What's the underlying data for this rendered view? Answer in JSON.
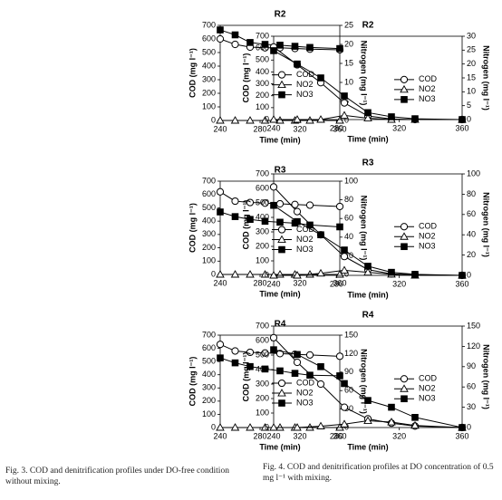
{
  "chart_data": [
    {
      "type": "line",
      "title": "R2",
      "x_label": "Time (min)",
      "y_label": "COD (mg l⁻¹)",
      "y2_label": "Nitrogen (mg l⁻¹)",
      "x": [
        240,
        255,
        270,
        285,
        300,
        315,
        330,
        360
      ],
      "xlim": [
        240,
        360
      ],
      "xticks": [
        240,
        280,
        320,
        360
      ],
      "ylim": [
        0,
        700
      ],
      "yticks": [
        0,
        100,
        200,
        300,
        400,
        500,
        600,
        700
      ],
      "y2lim": [
        0,
        25
      ],
      "y2ticks": [
        0,
        5,
        10,
        15,
        20,
        25
      ],
      "series": [
        {
          "name": "COD",
          "color": "#000000",
          "marker": "circle",
          "values": [
            600,
            560,
            540,
            535,
            535,
            530,
            525,
            520
          ]
        },
        {
          "name": "NO2",
          "color": "#000000",
          "marker": "triangle",
          "axis": "y2",
          "values": [
            0,
            0,
            0,
            0,
            0,
            0,
            0,
            0
          ]
        },
        {
          "name": "NO3",
          "color": "#000000",
          "marker": "square",
          "axis": "y2",
          "values": [
            23.8,
            22.5,
            20.5,
            20,
            19.8,
            19.5,
            19.2,
            18.9
          ]
        }
      ]
    },
    {
      "type": "line",
      "title": "R3",
      "x_label": "Time (min)",
      "y_label": "COD (mg l⁻¹)",
      "y2_label": "Nitrogen (mg l⁻¹)",
      "x": [
        240,
        255,
        270,
        285,
        300,
        315,
        330,
        360
      ],
      "xlim": [
        240,
        360
      ],
      "xticks": [
        240,
        280,
        320,
        360
      ],
      "ylim": [
        0,
        700
      ],
      "yticks": [
        0,
        100,
        200,
        300,
        400,
        500,
        600,
        700
      ],
      "y2lim": [
        0,
        100
      ],
      "y2ticks": [
        0,
        20,
        40,
        60,
        80,
        100
      ],
      "series": [
        {
          "name": "COD",
          "color": "#000000",
          "marker": "circle",
          "values": [
            620,
            550,
            540,
            535,
            530,
            525,
            520,
            510
          ]
        },
        {
          "name": "NO2",
          "color": "#000000",
          "marker": "triangle",
          "axis": "y2",
          "values": [
            0,
            0,
            0,
            0,
            0,
            0,
            0,
            0
          ]
        },
        {
          "name": "NO3",
          "color": "#000000",
          "marker": "square",
          "axis": "y2",
          "values": [
            67,
            62,
            59,
            57,
            56,
            55,
            53,
            51
          ]
        }
      ]
    },
    {
      "type": "line",
      "title": "R4",
      "x_label": "Time (min)",
      "y_label": "COD (mg l⁻¹)",
      "y2_label": "Nitrogen (mg l⁻¹)",
      "x": [
        240,
        255,
        270,
        285,
        300,
        315,
        330,
        360
      ],
      "xlim": [
        240,
        360
      ],
      "xticks": [
        240,
        280,
        320,
        360
      ],
      "ylim": [
        0,
        700
      ],
      "yticks": [
        0,
        100,
        200,
        300,
        400,
        500,
        600,
        700
      ],
      "y2lim": [
        0,
        150
      ],
      "y2ticks": [
        0,
        30,
        60,
        90,
        120,
        150
      ],
      "series": [
        {
          "name": "COD",
          "color": "#000000",
          "marker": "circle",
          "values": [
            630,
            580,
            570,
            565,
            560,
            555,
            550,
            540
          ]
        },
        {
          "name": "NO2",
          "color": "#000000",
          "marker": "triangle",
          "axis": "y2",
          "values": [
            0,
            0,
            0,
            0,
            0,
            0,
            0,
            0
          ]
        },
        {
          "name": "NO3",
          "color": "#000000",
          "marker": "square",
          "axis": "y2",
          "values": [
            113,
            105,
            99,
            95,
            92,
            88,
            85,
            84
          ]
        }
      ]
    },
    {
      "type": "line",
      "title": "R2",
      "x_label": "Time (min)",
      "y_label": "COD (mg l⁻¹)",
      "y2_label": "Nitrogen (mg l⁻¹)",
      "x": [
        240,
        255,
        270,
        285,
        300,
        315,
        330,
        360
      ],
      "xlim": [
        240,
        360
      ],
      "xticks": [
        240,
        280,
        320,
        360
      ],
      "ylim": [
        0,
        700
      ],
      "yticks": [
        0,
        100,
        200,
        300,
        400,
        500,
        600,
        700
      ],
      "y2lim": [
        0,
        30
      ],
      "y2ticks": [
        0,
        5,
        10,
        15,
        20,
        25,
        30
      ],
      "series": [
        {
          "name": "COD",
          "color": "#000000",
          "marker": "circle",
          "values": [
            610,
            460,
            310,
            140,
            30,
            5,
            0,
            0
          ]
        },
        {
          "name": "NO2",
          "color": "#000000",
          "marker": "triangle",
          "axis": "y2",
          "values": [
            0,
            0,
            0,
            1.5,
            0.5,
            0,
            0,
            0
          ]
        },
        {
          "name": "NO3",
          "color": "#000000",
          "marker": "square",
          "axis": "y2",
          "values": [
            24.8,
            20,
            15,
            8.5,
            2.5,
            1,
            0.3,
            0
          ]
        }
      ]
    },
    {
      "type": "line",
      "title": "R3",
      "x_label": "Time (min)",
      "y_label": "COD (mg l⁻¹)",
      "y2_label": "Nitrogen (mg l⁻¹)",
      "x": [
        240,
        255,
        270,
        285,
        300,
        315,
        330,
        360
      ],
      "xlim": [
        240,
        360
      ],
      "xticks": [
        240,
        280,
        320,
        360
      ],
      "ylim": [
        0,
        700
      ],
      "yticks": [
        0,
        100,
        200,
        300,
        400,
        500,
        600,
        700
      ],
      "y2lim": [
        0,
        100
      ],
      "y2ticks": [
        0,
        20,
        40,
        60,
        80,
        100
      ],
      "series": [
        {
          "name": "COD",
          "color": "#000000",
          "marker": "circle",
          "values": [
            610,
            440,
            280,
            130,
            40,
            10,
            5,
            0
          ]
        },
        {
          "name": "NO2",
          "color": "#000000",
          "marker": "triangle",
          "axis": "y2",
          "values": [
            0,
            0,
            2,
            5,
            3,
            1,
            0,
            0
          ]
        },
        {
          "name": "NO3",
          "color": "#000000",
          "marker": "square",
          "axis": "y2",
          "values": [
            69,
            53,
            40,
            25,
            9,
            3,
            1,
            0
          ]
        }
      ]
    },
    {
      "type": "line",
      "title": "R4",
      "x_label": "Time (min)",
      "y_label": "COD (mg l⁻¹)",
      "y2_label": "Nitrogen (mg l⁻¹)",
      "x": [
        240,
        255,
        270,
        285,
        300,
        315,
        330,
        360
      ],
      "xlim": [
        240,
        360
      ],
      "xticks": [
        240,
        280,
        320,
        360
      ],
      "ylim": [
        0,
        700
      ],
      "yticks": [
        0,
        100,
        200,
        300,
        400,
        500,
        600,
        700
      ],
      "y2lim": [
        0,
        150
      ],
      "y2ticks": [
        0,
        30,
        60,
        90,
        120,
        150
      ],
      "series": [
        {
          "name": "COD",
          "color": "#000000",
          "marker": "circle",
          "values": [
            620,
            450,
            300,
            140,
            60,
            30,
            10,
            0
          ]
        },
        {
          "name": "NO2",
          "color": "#000000",
          "marker": "triangle",
          "axis": "y2",
          "values": [
            0,
            0,
            2,
            5,
            10,
            8,
            3,
            0
          ]
        },
        {
          "name": "NO3",
          "color": "#000000",
          "marker": "square",
          "axis": "y2",
          "values": [
            115,
            108,
            90,
            65,
            40,
            30,
            15,
            0
          ]
        }
      ]
    }
  ],
  "captions": [
    "Fig. 3. COD and denitrification profiles under DO-free condition without mixing.",
    "Fig. 4. COD and denitrification profiles at DO concentration of 0.5 mg l⁻¹ with mixing."
  ]
}
